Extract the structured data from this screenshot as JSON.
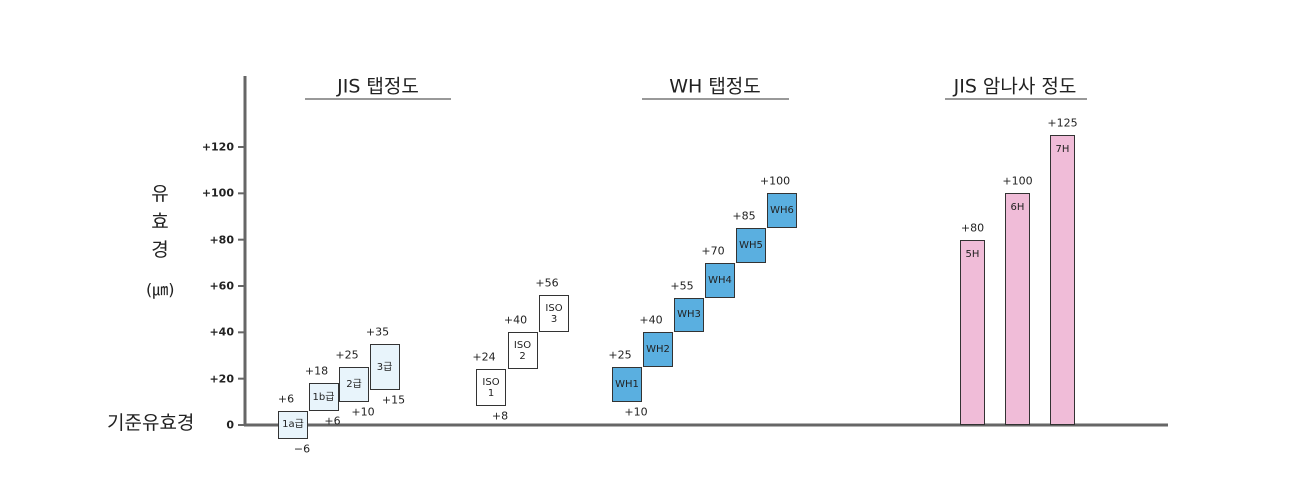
{
  "chart_data": {
    "type": "floating-bar",
    "ylabel": "유효경",
    "ylabel_unit": "(㎛)",
    "baseline_label": "기준유효경",
    "ylim": [
      0,
      150
    ],
    "yticks": [
      0,
      {
        "value": 20,
        "label": "+20"
      },
      {
        "value": 40,
        "label": "+40"
      },
      {
        "value": 60,
        "label": "+60"
      },
      {
        "value": 80,
        "label": "+80"
      },
      {
        "value": 100,
        "label": "+100"
      },
      {
        "value": 120,
        "label": "+120"
      }
    ],
    "groups": [
      {
        "title": "JIS 탭정도",
        "color": "#e8f4fb",
        "categories": [
          "1a급",
          "1b급",
          "2급",
          "3급"
        ],
        "low": [
          -6,
          6,
          10,
          15
        ],
        "high": [
          6,
          18,
          25,
          35
        ],
        "low_labels": [
          "−6",
          "+6",
          "+10",
          "+15"
        ],
        "high_labels": [
          "+6",
          "+18",
          "+25",
          "+35"
        ]
      },
      {
        "title": "",
        "color": "#ffffff",
        "categories": [
          "ISO 1",
          "ISO 2",
          "ISO 3"
        ],
        "low": [
          8,
          24,
          40
        ],
        "high": [
          24,
          40,
          56
        ],
        "low_labels": [
          "+8",
          null,
          null
        ],
        "high_labels": [
          "+24",
          "+40",
          "+56"
        ]
      },
      {
        "title": "WH 탭정도",
        "color": "#5aafe0",
        "categories": [
          "WH1",
          "WH2",
          "WH3",
          "WH4",
          "WH5",
          "WH6"
        ],
        "low": [
          10,
          25,
          40,
          55,
          70,
          85
        ],
        "high": [
          25,
          40,
          55,
          70,
          85,
          100
        ],
        "low_labels": [
          "+10",
          null,
          null,
          null,
          null,
          null
        ],
        "high_labels": [
          "+25",
          "+40",
          "+55",
          "+70",
          "+85",
          "+100"
        ]
      },
      {
        "title": "JIS 암나사 정도",
        "color": "#f0bcd8",
        "categories": [
          "5H",
          "6H",
          "7H"
        ],
        "low": [
          0,
          0,
          0
        ],
        "high": [
          80,
          100,
          125
        ],
        "low_labels": [
          null,
          null,
          null
        ],
        "high_labels": [
          "+80",
          "+100",
          "+125"
        ]
      }
    ]
  }
}
